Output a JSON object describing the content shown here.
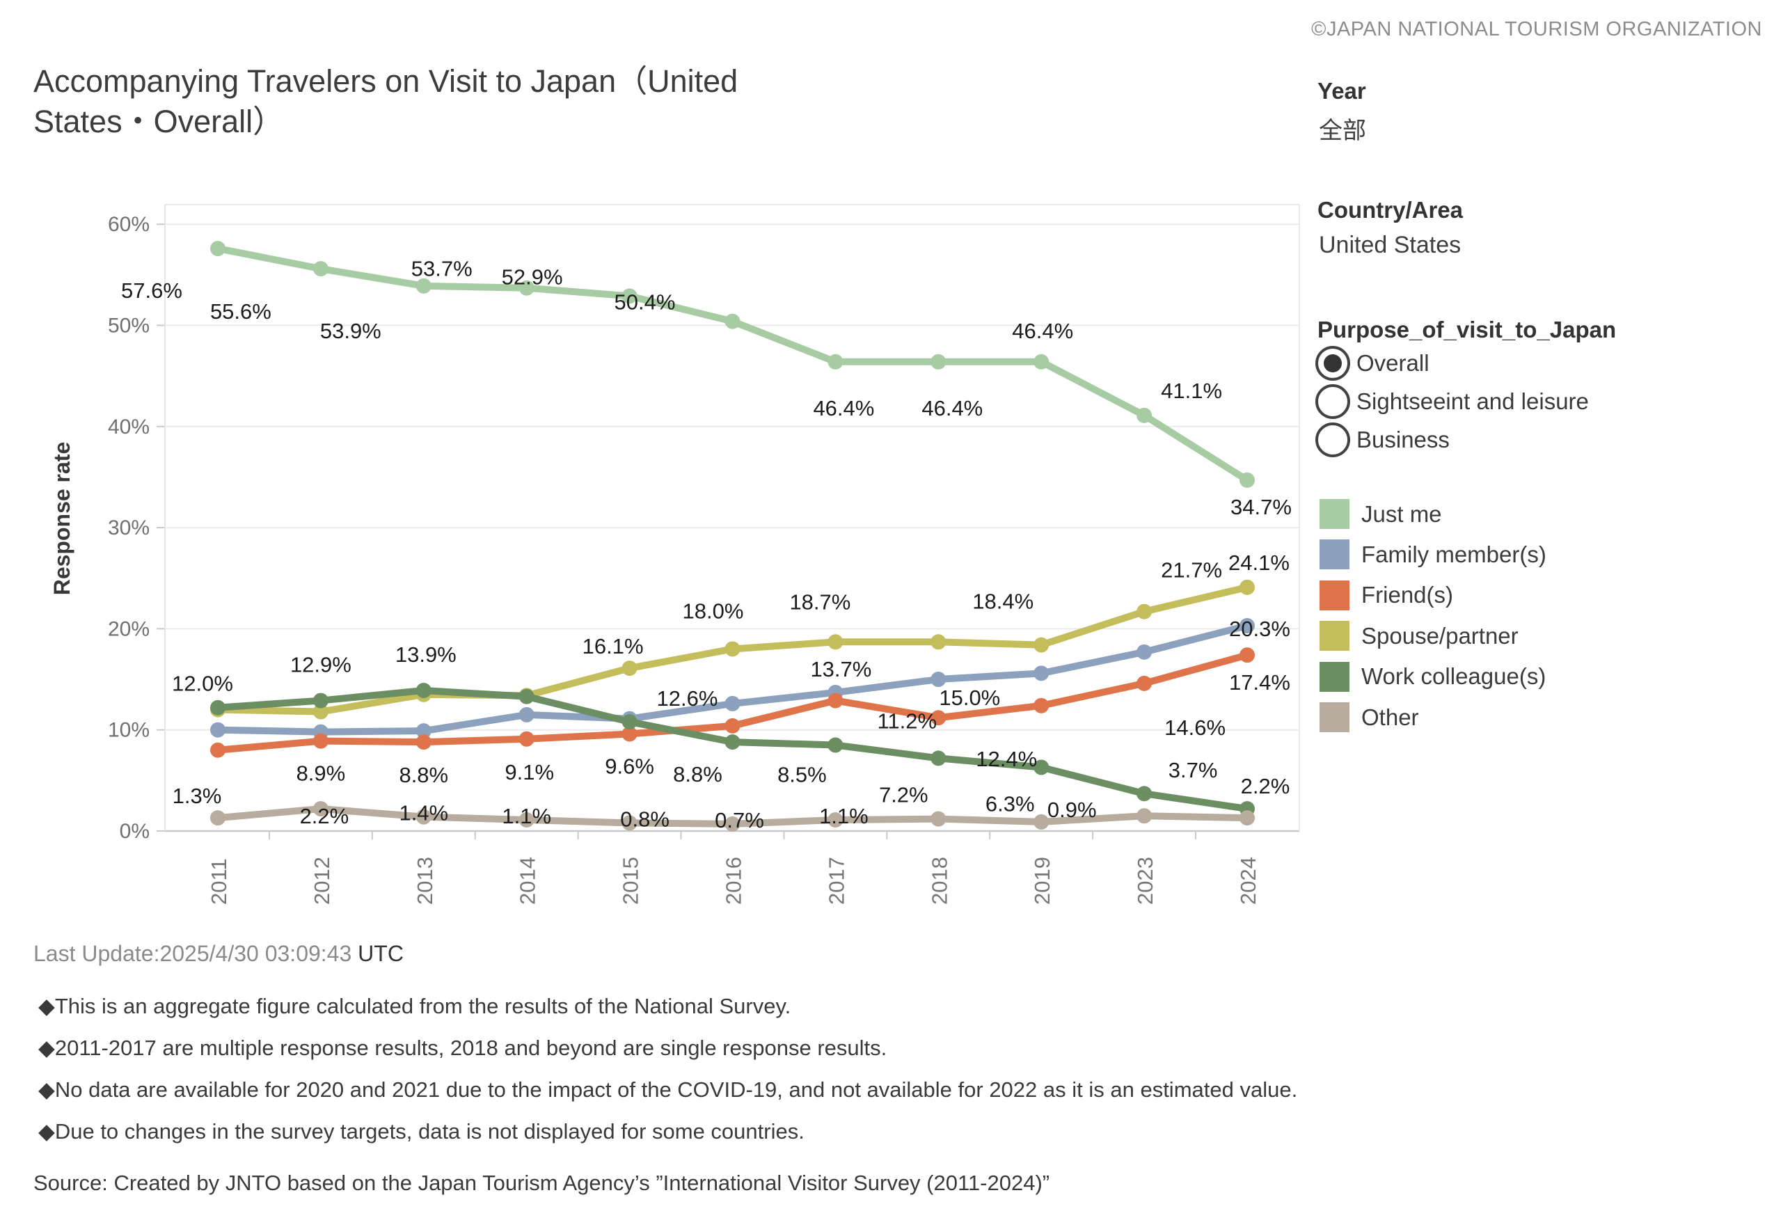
{
  "copyright": "©JAPAN NATIONAL TOURISM ORGANIZATION",
  "title_line1": "Accompanying Travelers on Visit to Japan（United",
  "title_line2": "States・Overall）",
  "filters": {
    "year_label": "Year",
    "year_value": "全部",
    "country_label": "Country/Area",
    "country_value": "United States",
    "purpose_label": "Purpose_of_visit_to_Japan",
    "purpose_options": [
      {
        "label": "Overall",
        "selected": true
      },
      {
        "label": "Sightseeint and leisure",
        "selected": false
      },
      {
        "label": "Business",
        "selected": false
      }
    ]
  },
  "legend": [
    {
      "label": "Just me",
      "color": "#a7cba3"
    },
    {
      "label": "Family member(s)",
      "color": "#8ba1bd"
    },
    {
      "label": "Friend(s)",
      "color": "#df744a"
    },
    {
      "label": "Spouse/partner",
      "color": "#c4bd5c"
    },
    {
      "label": "Work colleague(s)",
      "color": "#6b8f62"
    },
    {
      "label": "Other",
      "color": "#b7ac9d"
    }
  ],
  "chart_data": {
    "type": "line",
    "title": "Accompanying Travelers on Visit to Japan（United States・Overall）",
    "xlabel": "",
    "ylabel": "Response rate",
    "x": [
      "2011",
      "2012",
      "2013",
      "2014",
      "2015",
      "2016",
      "2017",
      "2018",
      "2019",
      "2023",
      "2024"
    ],
    "ylim": [
      0,
      62
    ],
    "grid": true,
    "legend_position": "right",
    "yticks": [
      {
        "value": 0,
        "label": "0%"
      },
      {
        "value": 10,
        "label": "10%"
      },
      {
        "value": 20,
        "label": "20%"
      },
      {
        "value": 30,
        "label": "30%"
      },
      {
        "value": 40,
        "label": "40%"
      },
      {
        "value": 50,
        "label": "50%"
      },
      {
        "value": 60,
        "label": "60%"
      }
    ],
    "series": [
      {
        "name": "Just me",
        "color": "#a7cba3",
        "points": [
          {
            "v": 57.6,
            "label": "57.6%",
            "dx": -95,
            "dy": 60
          },
          {
            "v": 55.6,
            "label": "55.6%",
            "dx": -115,
            "dy": 61
          },
          {
            "v": 53.9,
            "label": "53.9%",
            "dx": -105,
            "dy": 64
          },
          {
            "v": 53.7,
            "label": "53.7%",
            "dx": -122,
            "dy": -28
          },
          {
            "v": 52.9,
            "label": "52.9%",
            "dx": -140,
            "dy": -28
          },
          {
            "v": 50.4,
            "label": "50.4%",
            "dx": -126,
            "dy": -28
          },
          {
            "v": 46.4,
            "label": "46.4%",
            "dx": 12,
            "dy": 66
          },
          {
            "v": 46.4,
            "label": "46.4%",
            "dx": 20,
            "dy": 66
          },
          {
            "v": 46.4,
            "label": "46.4%",
            "dx": 2,
            "dy": -45
          },
          {
            "v": 41.1,
            "label": "41.1%",
            "dx": 68,
            "dy": -36
          },
          {
            "v": 34.7,
            "label": "34.7%",
            "dx": 20,
            "dy": 38
          }
        ]
      },
      {
        "name": "Family member(s)",
        "color": "#8ba1bd",
        "points": [
          {
            "v": 10.0,
            "label": null
          },
          {
            "v": 9.8,
            "label": null
          },
          {
            "v": 9.9,
            "label": null
          },
          {
            "v": 11.5,
            "label": null
          },
          {
            "v": 11.1,
            "label": null
          },
          {
            "v": 12.6,
            "label": "12.6%",
            "dx": -65,
            "dy": -8
          },
          {
            "v": 13.7,
            "label": "13.7%",
            "dx": 8,
            "dy": -34
          },
          {
            "v": 15.0,
            "label": "15.0%",
            "dx": 45,
            "dy": 26
          },
          {
            "v": 15.6,
            "label": null
          },
          {
            "v": 17.7,
            "label": null
          },
          {
            "v": 20.3,
            "label": "20.3%",
            "dx": 18,
            "dy": 4
          }
        ]
      },
      {
        "name": "Friend(s)",
        "color": "#df744a",
        "points": [
          {
            "v": 8.0,
            "label": null
          },
          {
            "v": 8.9,
            "label": "8.9%",
            "dx": 0,
            "dy": 46
          },
          {
            "v": 8.8,
            "label": "8.8%",
            "dx": 0,
            "dy": 47
          },
          {
            "v": 9.1,
            "label": "9.1%",
            "dx": 4,
            "dy": 47
          },
          {
            "v": 9.6,
            "label": "9.6%",
            "dx": 0,
            "dy": 46
          },
          {
            "v": 10.4,
            "label": null
          },
          {
            "v": 12.9,
            "label": null
          },
          {
            "v": 11.2,
            "label": "11.2%",
            "dx": -45,
            "dy": 4
          },
          {
            "v": 12.4,
            "label": "12.4%",
            "dx": -50,
            "dy": 76
          },
          {
            "v": 14.6,
            "label": "14.6%",
            "dx": 73,
            "dy": 63
          },
          {
            "v": 17.4,
            "label": "17.4%",
            "dx": 18,
            "dy": 39
          }
        ]
      },
      {
        "name": "Spouse/partner",
        "color": "#c4bd5c",
        "points": [
          {
            "v": 12.0,
            "label": "12.0%",
            "dx": -22,
            "dy": -38
          },
          {
            "v": 11.8,
            "label": null
          },
          {
            "v": 13.5,
            "label": null
          },
          {
            "v": 13.4,
            "label": null
          },
          {
            "v": 16.1,
            "label": "16.1%",
            "dx": -24,
            "dy": -32
          },
          {
            "v": 18.0,
            "label": "18.0%",
            "dx": -28,
            "dy": -55
          },
          {
            "v": 18.7,
            "label": "18.7%",
            "dx": -22,
            "dy": -58
          },
          {
            "v": 18.7,
            "label": null
          },
          {
            "v": 18.4,
            "label": "18.4%",
            "dx": -55,
            "dy": -63
          },
          {
            "v": 21.7,
            "label": "21.7%",
            "dx": 68,
            "dy": -60
          },
          {
            "v": 24.1,
            "label": "24.1%",
            "dx": 17,
            "dy": -36
          }
        ]
      },
      {
        "name": "Work colleague(s)",
        "color": "#6b8f62",
        "points": [
          {
            "v": 12.2,
            "label": null
          },
          {
            "v": 12.9,
            "label": "12.9%",
            "dx": 0,
            "dy": -52
          },
          {
            "v": 13.9,
            "label": "13.9%",
            "dx": 3,
            "dy": -52
          },
          {
            "v": 13.3,
            "label": null
          },
          {
            "v": 10.8,
            "label": null
          },
          {
            "v": 8.8,
            "label": "8.8%",
            "dx": -50,
            "dy": 46
          },
          {
            "v": 8.5,
            "label": "8.5%",
            "dx": -48,
            "dy": 42
          },
          {
            "v": 7.2,
            "label": "7.2%",
            "dx": -50,
            "dy": 52
          },
          {
            "v": 6.3,
            "label": "6.3%",
            "dx": -45,
            "dy": 52
          },
          {
            "v": 3.7,
            "label": "3.7%",
            "dx": 70,
            "dy": -34
          },
          {
            "v": 2.2,
            "label": "2.2%",
            "dx": 26,
            "dy": -33
          }
        ]
      },
      {
        "name": "Other",
        "color": "#b7ac9d",
        "points": [
          {
            "v": 1.3,
            "label": "1.3%",
            "dx": -30,
            "dy": -32
          },
          {
            "v": 2.2,
            "label": "2.2%",
            "dx": 5,
            "dy": 10
          },
          {
            "v": 1.4,
            "label": "1.4%",
            "dx": 0,
            "dy": -6
          },
          {
            "v": 1.1,
            "label": "1.1%",
            "dx": 0,
            "dy": -6
          },
          {
            "v": 0.8,
            "label": "0.8%",
            "dx": 22,
            "dy": -6
          },
          {
            "v": 0.7,
            "label": "0.7%",
            "dx": 10,
            "dy": -6
          },
          {
            "v": 1.1,
            "label": "1.1%",
            "dx": 12,
            "dy": -6
          },
          {
            "v": 1.2,
            "label": null
          },
          {
            "v": 0.9,
            "label": "0.9%",
            "dx": 44,
            "dy": -18
          },
          {
            "v": 1.5,
            "label": null
          },
          {
            "v": 1.3,
            "label": null
          }
        ]
      }
    ]
  },
  "footer": {
    "last_update_gray": "Last Update:2025/4/30 03:09:43",
    "last_update_dark": " UTC",
    "notes": [
      "◆This is an aggregate figure calculated from the results of the National Survey.",
      "◆2011-2017 are multiple response results, 2018 and beyond are single response results.",
      "◆No data are available for 2020 and 2021 due to the impact of the COVID-19, and not available for 2022 as it is an estimated value.",
      "◆Due to changes in the survey targets, data is not displayed for some countries."
    ],
    "source": "Source: Created by JNTO based on the Japan Tourism Agency’s ”International Visitor Survey (2011-2024)”"
  }
}
